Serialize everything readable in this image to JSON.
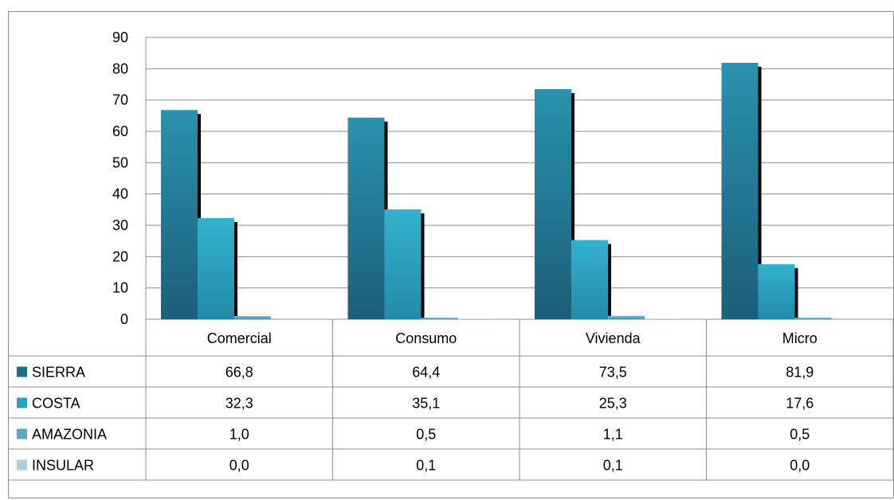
{
  "chart_data": {
    "type": "bar",
    "title": "",
    "xlabel": "",
    "ylabel": "",
    "ylim": [
      0,
      90
    ],
    "yticks": [
      0,
      10,
      20,
      30,
      40,
      50,
      60,
      70,
      80,
      90
    ],
    "categories": [
      "Comercial",
      "Consumo",
      "Vivienda",
      "Micro"
    ],
    "series": [
      {
        "name": "SIERRA",
        "values": [
          66.8,
          64.4,
          73.5,
          81.9
        ],
        "labels": [
          "66,8",
          "64,4",
          "73,5",
          "81,9"
        ],
        "color": "#1f7a93"
      },
      {
        "name": "COSTA",
        "values": [
          32.3,
          35.1,
          25.3,
          17.6
        ],
        "labels": [
          "32,3",
          "35,1",
          "25,3",
          "17,6"
        ],
        "color": "#2ea3c4"
      },
      {
        "name": "AMAZONIA",
        "values": [
          1.0,
          0.5,
          1.1,
          0.5
        ],
        "labels": [
          "1,0",
          "0,5",
          "1,1",
          "0,5"
        ],
        "color": "#5aa9c3"
      },
      {
        "name": "INSULAR",
        "values": [
          0.0,
          0.1,
          0.1,
          0.0
        ],
        "labels": [
          "0,0",
          "0,1",
          "0,1",
          "0,0"
        ],
        "color": "#9cc6d6"
      }
    ],
    "grid": true,
    "legend": "data-table-left"
  }
}
